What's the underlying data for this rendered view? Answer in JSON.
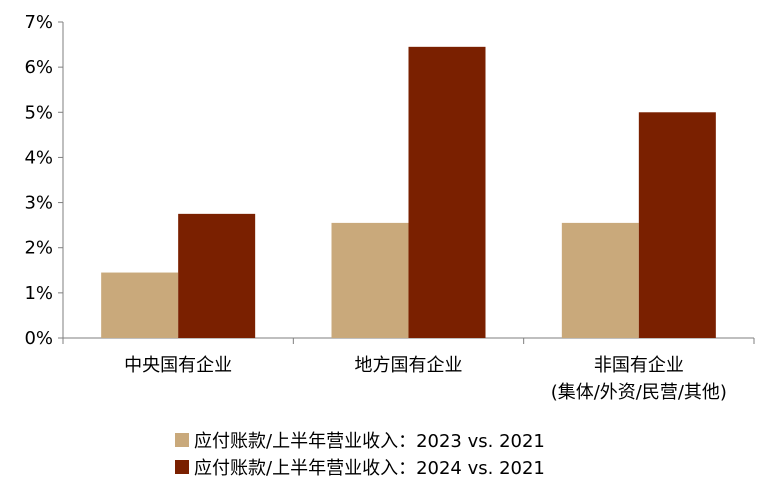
{
  "chart_data": {
    "type": "bar",
    "title": "",
    "xlabel": "",
    "ylabel": "",
    "categories": [
      [
        "中央国有企业"
      ],
      [
        "地方国有企业"
      ],
      [
        "非国有企业",
        "(集体/外资/民营/其他)"
      ]
    ],
    "series": [
      {
        "name": "应付账款/上半年营业收入：2023 vs. 2021",
        "color": "#c9a97b",
        "values": [
          1.45,
          2.55,
          2.55
        ]
      },
      {
        "name": "应付账款/上半年营业收入：2024 vs. 2021",
        "color": "#7a2000",
        "values": [
          2.75,
          6.45,
          5.0
        ]
      }
    ],
    "ylim": [
      0,
      7
    ],
    "yticks": [
      0,
      1,
      2,
      3,
      4,
      5,
      6,
      7
    ],
    "ytick_format": "percent",
    "grid": false,
    "legend_position": "bottom"
  }
}
